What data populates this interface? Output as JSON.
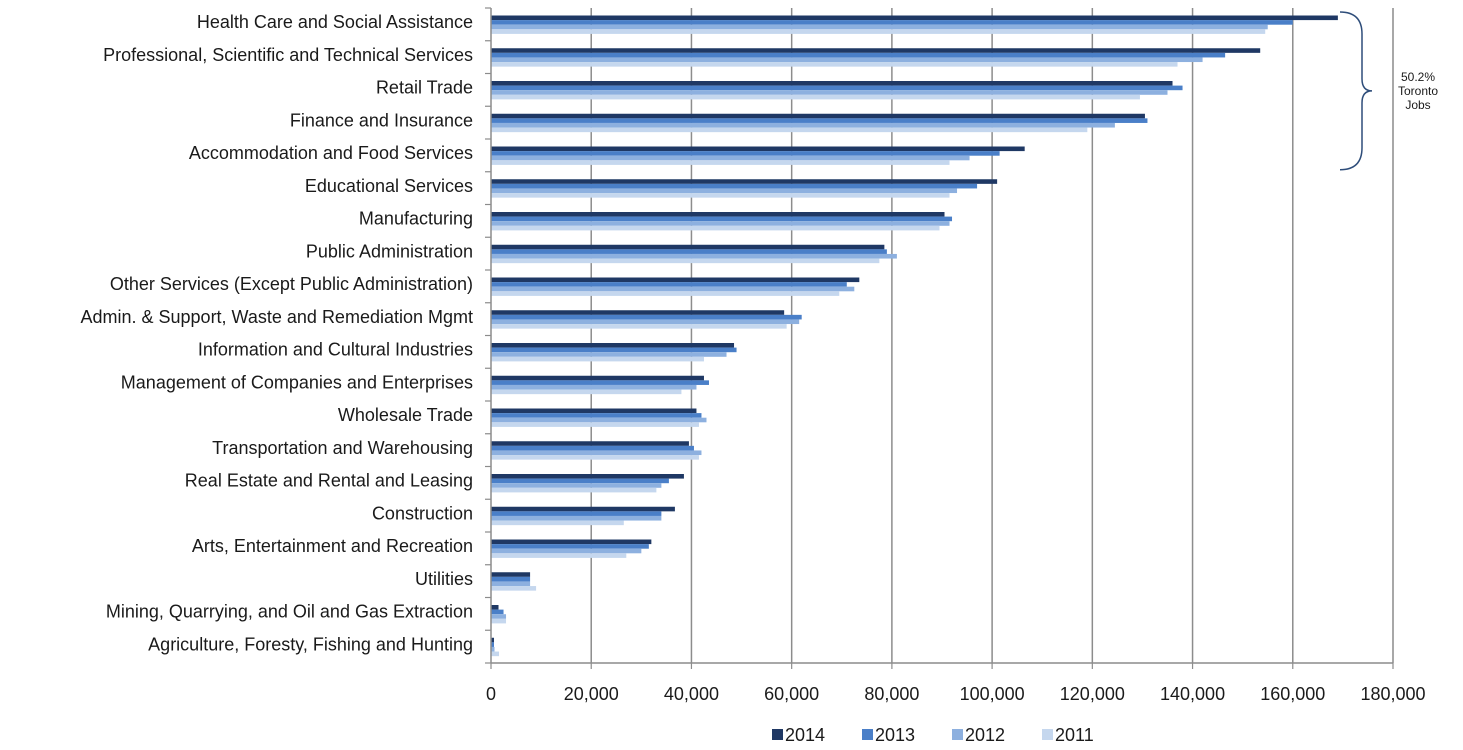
{
  "chart_data": {
    "type": "bar",
    "orientation": "horizontal",
    "title": "",
    "xlabel": "",
    "ylabel": "",
    "xlim": [
      0,
      180000
    ],
    "x_ticks": [
      "0",
      "20,000",
      "40,000",
      "60,000",
      "80,000",
      "100,000",
      "120,000",
      "140,000",
      "160,000",
      "180,000"
    ],
    "x_tick_values": [
      0,
      20000,
      40000,
      60000,
      80000,
      100000,
      120000,
      140000,
      160000,
      180000
    ],
    "grid": "vertical",
    "legend_position": "bottom",
    "categories": [
      "Health Care and Social Assistance",
      "Professional, Scientific and Technical Services",
      "Retail Trade",
      "Finance and Insurance",
      "Accommodation and Food Services",
      "Educational Services",
      "Manufacturing",
      "Public Administration",
      "Other Services (Except Public Administration)",
      "Admin. & Support, Waste and Remediation Mgmt",
      "Information and Cultural Industries",
      "Management of Companies and Enterprises",
      "Wholesale Trade",
      "Transportation and Warehousing",
      "Real Estate and Rental and Leasing",
      "Construction",
      "Arts, Entertainment and Recreation",
      "Utilities",
      "Mining, Quarrying, and Oil and Gas Extraction",
      "Agriculture, Foresty, Fishing and Hunting"
    ],
    "series": [
      {
        "name": "2014",
        "color": "#1f3864",
        "values": [
          169000,
          153500,
          136000,
          130500,
          106500,
          101000,
          90500,
          78500,
          73500,
          58500,
          48500,
          42500,
          41000,
          39500,
          38500,
          36700,
          32000,
          7800,
          1500,
          600
        ]
      },
      {
        "name": "2013",
        "color": "#4a7fc8",
        "values": [
          160000,
          146500,
          138000,
          131000,
          101500,
          97000,
          92000,
          79000,
          71000,
          62000,
          49000,
          43500,
          42000,
          40500,
          35500,
          34000,
          31500,
          7800,
          2500,
          600
        ]
      },
      {
        "name": "2012",
        "color": "#8db0df",
        "values": [
          155000,
          142000,
          135000,
          124500,
          95500,
          93000,
          91500,
          81000,
          72500,
          61500,
          47000,
          41000,
          43000,
          42000,
          34000,
          34000,
          30000,
          7800,
          3000,
          700
        ]
      },
      {
        "name": "2011",
        "color": "#c5d7ee",
        "values": [
          154500,
          137000,
          129500,
          119000,
          91500,
          91500,
          89500,
          77500,
          69500,
          59000,
          42500,
          38000,
          41500,
          41500,
          33000,
          26500,
          27000,
          9000,
          3000,
          1600
        ]
      }
    ],
    "annotation": {
      "text_lines": [
        "50.2%",
        "Toronto",
        "Jobs"
      ],
      "spans_categories": [
        0,
        4
      ]
    }
  }
}
